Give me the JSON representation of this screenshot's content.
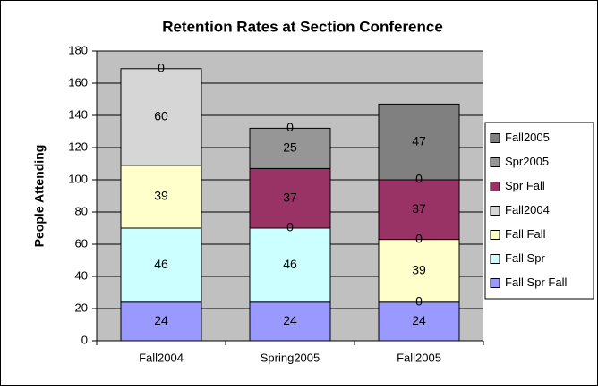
{
  "chart_data": {
    "type": "stacked_bar",
    "title": "Retention Rates at Section Conference",
    "y_label": "People Attending",
    "categories": [
      "Fall2004",
      "Spring2005",
      "Fall2005"
    ],
    "series": [
      {
        "name": "Fall Spr Fall",
        "color": "#9999ff",
        "values": [
          24,
          24,
          24
        ]
      },
      {
        "name": "Fall Spr",
        "color": "#ccffff",
        "values": [
          46,
          46,
          0
        ]
      },
      {
        "name": "Fall Fall",
        "color": "#ffffcc",
        "values": [
          39,
          0,
          39
        ]
      },
      {
        "name": "Fall2004",
        "color": "#d6d6d6",
        "values": [
          60,
          null,
          0
        ]
      },
      {
        "name": "Spr Fall",
        "color": "#993366",
        "values": [
          0,
          37,
          37
        ]
      },
      {
        "name": "Spr2005",
        "color": "#969696",
        "values": [
          null,
          25,
          0
        ]
      },
      {
        "name": "Fall2005",
        "color": "#808080",
        "values": [
          null,
          0,
          47
        ]
      }
    ],
    "ylim": [
      0,
      180
    ],
    "yticks": [
      0,
      20,
      40,
      60,
      80,
      100,
      120,
      140,
      160,
      180
    ],
    "grid": true,
    "legend": "right"
  }
}
